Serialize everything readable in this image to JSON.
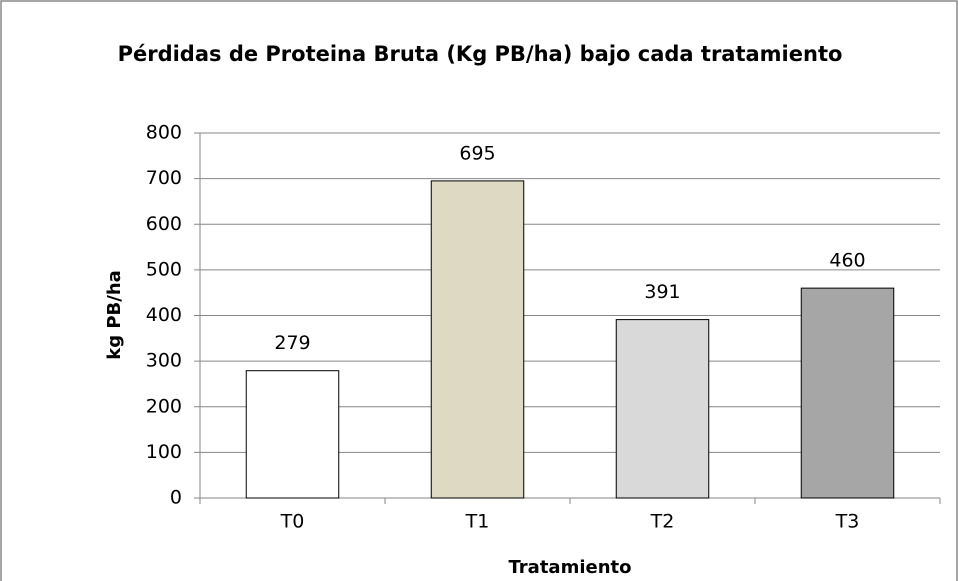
{
  "chart_data": {
    "type": "bar",
    "title": "Pérdidas de Proteina Bruta (Kg PB/ha) bajo cada tratamiento",
    "x_label": "Tratamiento",
    "y_label": "kg PB/ha",
    "categories": [
      "T0",
      "T1",
      "T2",
      "T3"
    ],
    "values": [
      279,
      695,
      391,
      460
    ],
    "colors": [
      "#ffffff",
      "#ddd9c3",
      "#d9d9d9",
      "#a6a6a6"
    ],
    "ylim": [
      0,
      800
    ],
    "yticks": [
      0,
      100,
      200,
      300,
      400,
      500,
      600,
      700,
      800
    ],
    "grid": true
  }
}
